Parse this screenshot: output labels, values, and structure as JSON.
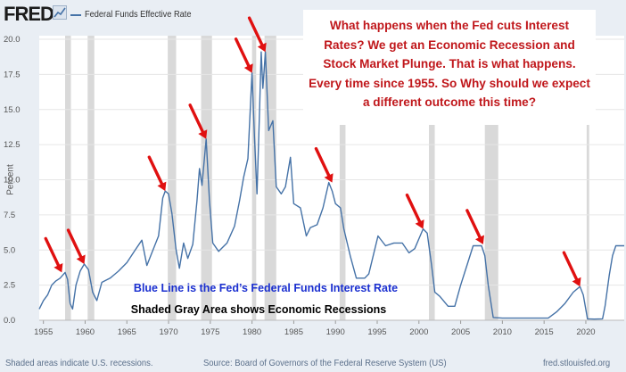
{
  "header": {
    "logo_text": "FRED",
    "legend_label": "Federal Funds Effective Rate",
    "series_color": "#4572a7"
  },
  "callout": {
    "text": "What happens when the Fed cuts Interest Rates? We get an Economic Recession and Stock Market Plunge. That is what happens. Every time since 1955. So Why should we expect a different outcome this time?"
  },
  "notes": {
    "blue_line": "Blue Line is the Fed’s Federal Funds Interest Rate",
    "shaded_area": "Shaded Gray Area shows Economic Recessions"
  },
  "footer": {
    "left": "Shaded areas indicate U.S. recessions.",
    "middle": "Source: Board of Governors of the Federal Reserve System (US)",
    "right": "fred.stlouisfed.org"
  },
  "chart_data": {
    "type": "line",
    "title": "",
    "xlabel": "",
    "ylabel": "Percent",
    "xlim": [
      1954.5,
      2024.6
    ],
    "ylim": [
      0,
      20
    ],
    "x_ticks": [
      1955,
      1960,
      1965,
      1970,
      1975,
      1980,
      1985,
      1990,
      1995,
      2000,
      2005,
      2010,
      2015,
      2020
    ],
    "y_ticks": [
      0.0,
      2.5,
      5.0,
      7.5,
      10.0,
      12.5,
      15.0,
      17.5,
      20.0
    ],
    "y_tick_labels": [
      "0.0",
      "2.5",
      "5.0",
      "7.5",
      "10.0",
      "12.5",
      "15.0",
      "17.5",
      "20.0"
    ],
    "grid": true,
    "recessions": [
      [
        1957.6,
        1958.3
      ],
      [
        1960.3,
        1961.1
      ],
      [
        1969.9,
        1970.9
      ],
      [
        1973.9,
        1975.2
      ],
      [
        1980.0,
        1980.5
      ],
      [
        1981.5,
        1982.9
      ],
      [
        1990.5,
        1991.2
      ],
      [
        2001.2,
        2001.9
      ],
      [
        2007.9,
        2009.5
      ],
      [
        2020.1,
        2020.4
      ]
    ],
    "series": [
      {
        "color": "#4572a7",
        "points": [
          [
            1954.5,
            0.8
          ],
          [
            1955.0,
            1.4
          ],
          [
            1955.5,
            1.8
          ],
          [
            1956.0,
            2.5
          ],
          [
            1956.5,
            2.8
          ],
          [
            1957.0,
            3.0
          ],
          [
            1957.6,
            3.4
          ],
          [
            1957.9,
            2.9
          ],
          [
            1958.2,
            1.2
          ],
          [
            1958.5,
            0.8
          ],
          [
            1958.9,
            2.5
          ],
          [
            1959.4,
            3.5
          ],
          [
            1959.9,
            4.0
          ],
          [
            1960.4,
            3.6
          ],
          [
            1960.9,
            2.0
          ],
          [
            1961.4,
            1.4
          ],
          [
            1962.0,
            2.7
          ],
          [
            1963.0,
            3.0
          ],
          [
            1964.0,
            3.5
          ],
          [
            1965.0,
            4.1
          ],
          [
            1966.0,
            5.0
          ],
          [
            1966.8,
            5.7
          ],
          [
            1967.4,
            3.9
          ],
          [
            1968.0,
            4.8
          ],
          [
            1968.8,
            6.0
          ],
          [
            1969.3,
            8.7
          ],
          [
            1969.6,
            9.2
          ],
          [
            1970.0,
            9.0
          ],
          [
            1970.4,
            7.6
          ],
          [
            1970.9,
            5.0
          ],
          [
            1971.3,
            3.7
          ],
          [
            1971.8,
            5.5
          ],
          [
            1972.3,
            4.4
          ],
          [
            1972.9,
            5.4
          ],
          [
            1973.4,
            8.5
          ],
          [
            1973.7,
            10.8
          ],
          [
            1974.0,
            9.6
          ],
          [
            1974.5,
            12.9
          ],
          [
            1974.9,
            8.5
          ],
          [
            1975.3,
            5.5
          ],
          [
            1976.0,
            4.9
          ],
          [
            1977.0,
            5.5
          ],
          [
            1977.9,
            6.7
          ],
          [
            1978.5,
            8.5
          ],
          [
            1979.0,
            10.2
          ],
          [
            1979.5,
            11.5
          ],
          [
            1980.0,
            17.6
          ],
          [
            1980.3,
            13.0
          ],
          [
            1980.6,
            9.0
          ],
          [
            1980.9,
            15.0
          ],
          [
            1981.1,
            19.1
          ],
          [
            1981.3,
            16.5
          ],
          [
            1981.6,
            19.1
          ],
          [
            1982.0,
            13.5
          ],
          [
            1982.5,
            14.2
          ],
          [
            1982.9,
            9.5
          ],
          [
            1983.5,
            9.0
          ],
          [
            1984.0,
            9.5
          ],
          [
            1984.6,
            11.6
          ],
          [
            1985.0,
            8.3
          ],
          [
            1985.8,
            8.0
          ],
          [
            1986.5,
            6.0
          ],
          [
            1987.0,
            6.6
          ],
          [
            1987.8,
            6.8
          ],
          [
            1988.5,
            8.0
          ],
          [
            1989.2,
            9.8
          ],
          [
            1989.6,
            9.2
          ],
          [
            1990.0,
            8.3
          ],
          [
            1990.6,
            8.0
          ],
          [
            1991.0,
            6.5
          ],
          [
            1991.8,
            4.5
          ],
          [
            1992.5,
            3.0
          ],
          [
            1993.5,
            3.0
          ],
          [
            1994.0,
            3.3
          ],
          [
            1994.6,
            4.8
          ],
          [
            1995.1,
            6.0
          ],
          [
            1996.0,
            5.3
          ],
          [
            1997.0,
            5.5
          ],
          [
            1998.0,
            5.5
          ],
          [
            1998.8,
            4.8
          ],
          [
            1999.5,
            5.1
          ],
          [
            2000.0,
            5.8
          ],
          [
            2000.5,
            6.5
          ],
          [
            2001.0,
            6.2
          ],
          [
            2001.5,
            4.0
          ],
          [
            2001.9,
            2.0
          ],
          [
            2002.5,
            1.7
          ],
          [
            2003.5,
            1.0
          ],
          [
            2004.3,
            1.0
          ],
          [
            2005.0,
            2.5
          ],
          [
            2005.8,
            4.0
          ],
          [
            2006.5,
            5.3
          ],
          [
            2007.5,
            5.3
          ],
          [
            2007.9,
            4.6
          ],
          [
            2008.3,
            2.5
          ],
          [
            2008.9,
            0.2
          ],
          [
            2010.0,
            0.15
          ],
          [
            2012.0,
            0.15
          ],
          [
            2015.5,
            0.15
          ],
          [
            2016.5,
            0.6
          ],
          [
            2017.5,
            1.2
          ],
          [
            2018.5,
            2.0
          ],
          [
            2019.3,
            2.4
          ],
          [
            2019.7,
            1.8
          ],
          [
            2020.2,
            0.1
          ],
          [
            2021.0,
            0.08
          ],
          [
            2022.0,
            0.1
          ],
          [
            2022.3,
            1.0
          ],
          [
            2022.8,
            3.2
          ],
          [
            2023.2,
            4.6
          ],
          [
            2023.6,
            5.3
          ],
          [
            2024.6,
            5.3
          ]
        ]
      }
    ],
    "annotation_arrows": [
      [
        1957.2,
        3.4
      ],
      [
        1959.9,
        4.0
      ],
      [
        1969.6,
        9.2
      ],
      [
        1974.5,
        12.9
      ],
      [
        1980.0,
        17.6
      ],
      [
        1981.6,
        19.1
      ],
      [
        1989.6,
        9.8
      ],
      [
        2000.5,
        6.5
      ],
      [
        2007.7,
        5.4
      ],
      [
        2019.3,
        2.4
      ]
    ],
    "annotation_color": "#e01010"
  }
}
